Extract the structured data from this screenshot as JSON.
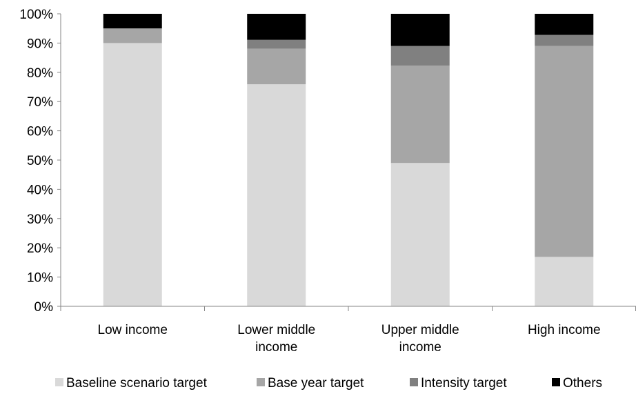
{
  "chart_data": {
    "type": "bar",
    "stacked": true,
    "categories": [
      [
        "Low income"
      ],
      [
        "Lower middle",
        "income"
      ],
      [
        "Upper middle",
        "income"
      ],
      [
        "High income"
      ]
    ],
    "series": [
      {
        "name": "Baseline scenario target",
        "color": "#d9d9d9",
        "values": [
          90,
          75.9,
          49,
          16.9
        ]
      },
      {
        "name": "Base year target",
        "color": "#a6a6a6",
        "values": [
          5,
          12.2,
          33.3,
          72.1
        ]
      },
      {
        "name": "Intensity target",
        "color": "#808080",
        "values": [
          0,
          3,
          6.7,
          3.8
        ]
      },
      {
        "name": "Others",
        "color": "#000000",
        "values": [
          5,
          8.9,
          11,
          7.2
        ]
      }
    ],
    "y_ticks": [
      "0%",
      "10%",
      "20%",
      "30%",
      "40%",
      "50%",
      "60%",
      "70%",
      "80%",
      "90%",
      "100%"
    ],
    "ylim": [
      0,
      100
    ],
    "ylabel": "",
    "xlabel": "",
    "title": "",
    "grid": false,
    "legend_position": "bottom"
  }
}
